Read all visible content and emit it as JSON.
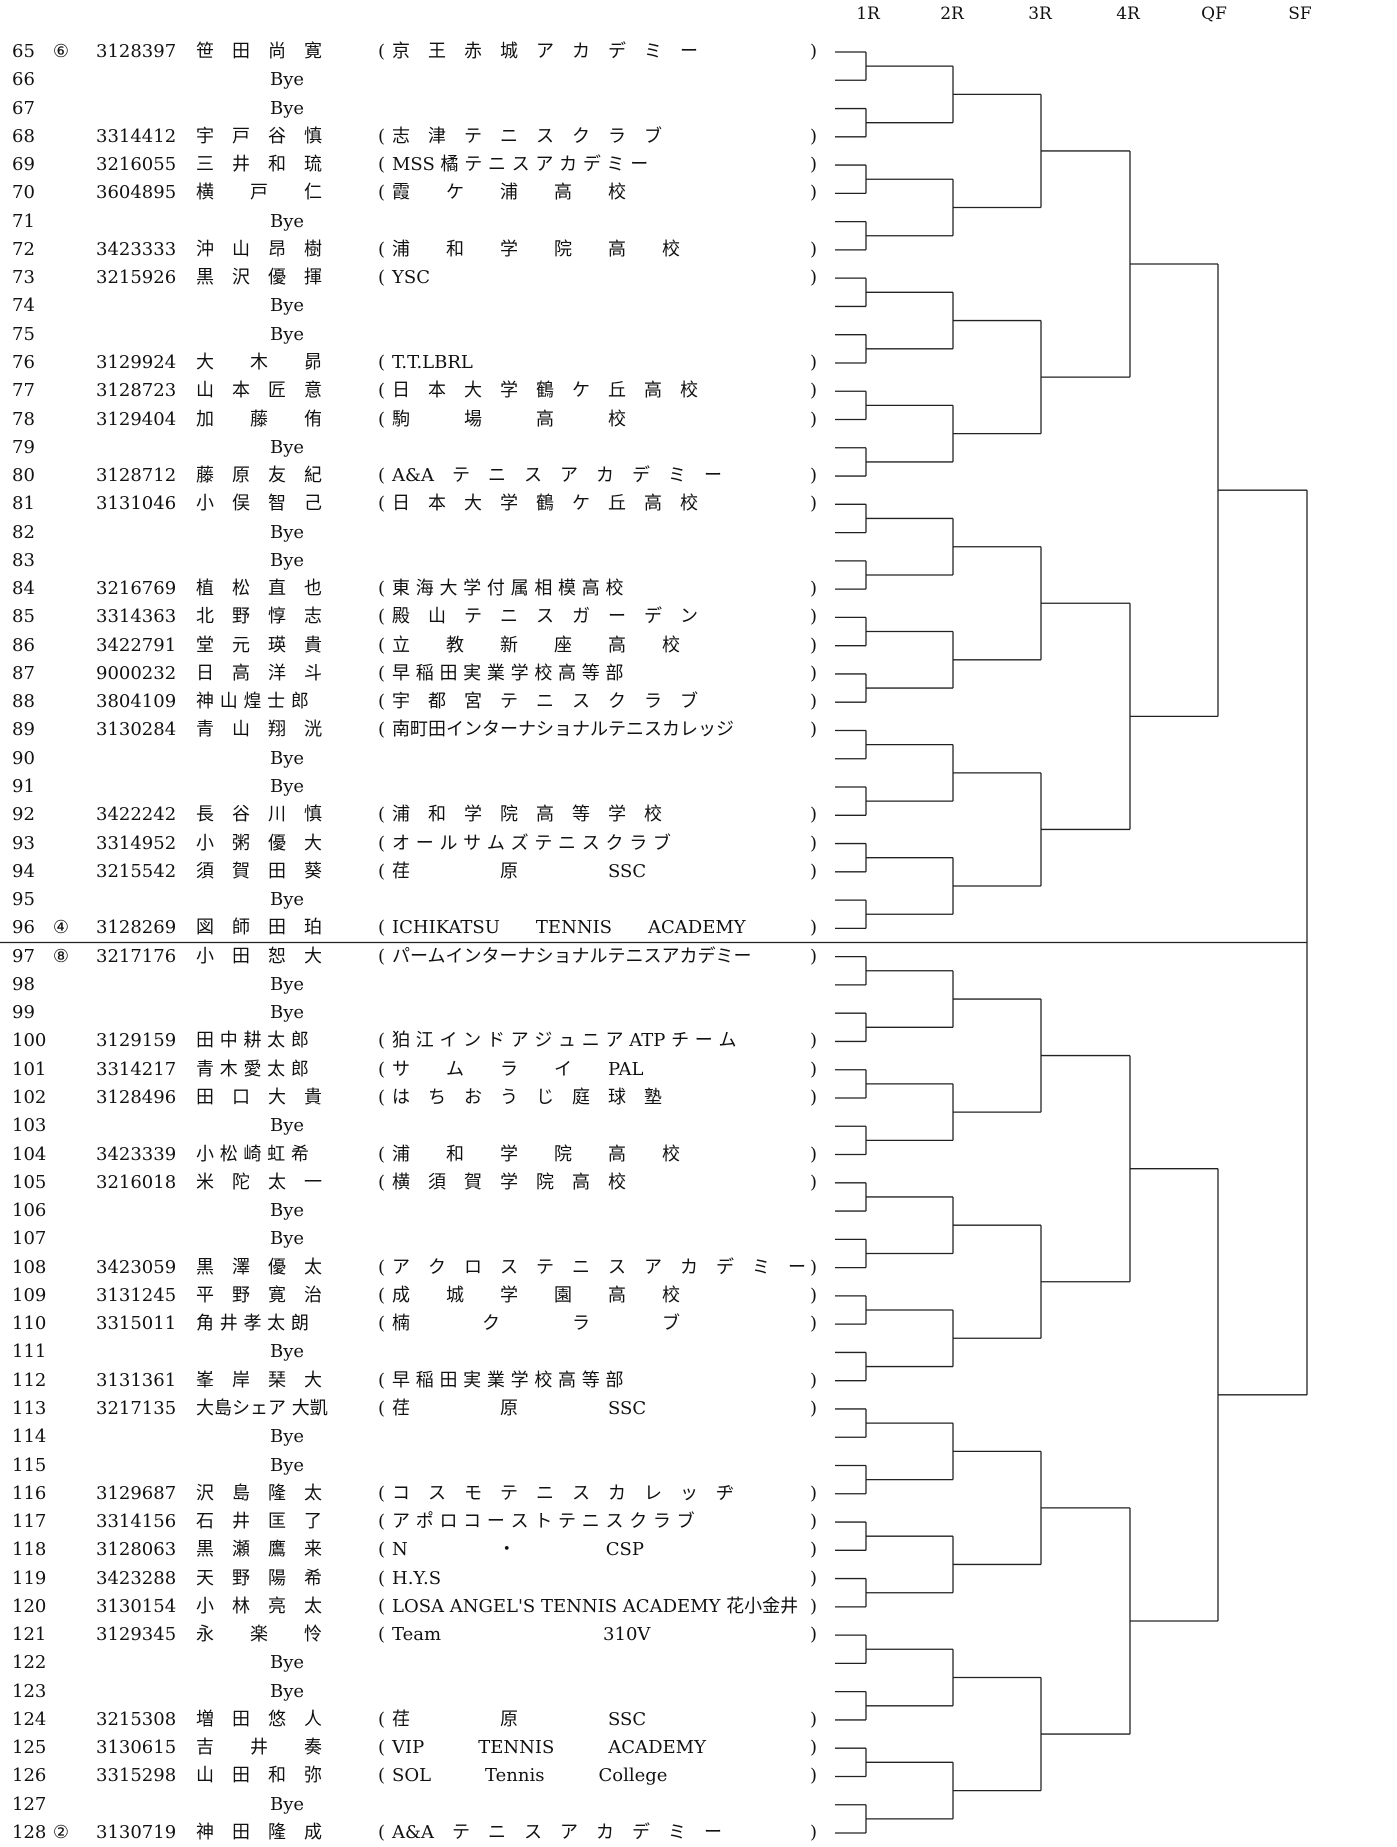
{
  "rounds": [
    "1R",
    "2R",
    "3R",
    "4R",
    "QF",
    "SF"
  ],
  "entries": [
    {
      "no": "65",
      "seed": "⑥",
      "id": "3128397",
      "name": "笹　田　尚　寛",
      "club": "京　王　赤　城　ア　カ　デ　ミ　ー"
    },
    {
      "no": "66",
      "seed": "",
      "id": "",
      "name": "",
      "club": "",
      "bye": "Bye"
    },
    {
      "no": "67",
      "seed": "",
      "id": "",
      "name": "",
      "club": "",
      "bye": "Bye"
    },
    {
      "no": "68",
      "seed": "",
      "id": "3314412",
      "name": "宇　戸　谷　慎",
      "club": "志　津　テ　ニ　ス　ク　ラ　ブ"
    },
    {
      "no": "69",
      "seed": "",
      "id": "3216055",
      "name": "三　井　和　琉",
      "club": "MSS 橘 テ ニ ス ア カ デ ミ ー"
    },
    {
      "no": "70",
      "seed": "",
      "id": "3604895",
      "name": "横　　戸　　仁",
      "club": "霞　　ケ　　浦　　高　　校"
    },
    {
      "no": "71",
      "seed": "",
      "id": "",
      "name": "",
      "club": "",
      "bye": "Bye"
    },
    {
      "no": "72",
      "seed": "",
      "id": "3423333",
      "name": "沖　山　昂　樹",
      "club": "浦　　和　　学　　院　　高　　校"
    },
    {
      "no": "73",
      "seed": "",
      "id": "3215926",
      "name": "黒　沢　優　揮",
      "club": "YSC"
    },
    {
      "no": "74",
      "seed": "",
      "id": "",
      "name": "",
      "club": "",
      "bye": "Bye"
    },
    {
      "no": "75",
      "seed": "",
      "id": "",
      "name": "",
      "club": "",
      "bye": "Bye"
    },
    {
      "no": "76",
      "seed": "",
      "id": "3129924",
      "name": "大　　木　　昴",
      "club": "T.T.LBRL"
    },
    {
      "no": "77",
      "seed": "",
      "id": "3128723",
      "name": "山　本　匠　意",
      "club": "日　本　大　学　鶴　ケ　丘　高　校"
    },
    {
      "no": "78",
      "seed": "",
      "id": "3129404",
      "name": "加　　藤　　侑",
      "club": "駒　　　場　　　高　　　校"
    },
    {
      "no": "79",
      "seed": "",
      "id": "",
      "name": "",
      "club": "",
      "bye": "Bye"
    },
    {
      "no": "80",
      "seed": "",
      "id": "3128712",
      "name": "藤　原　友　紀",
      "club": "A&A　テ　ニ　ス　ア　カ　デ　ミ　ー"
    },
    {
      "no": "81",
      "seed": "",
      "id": "3131046",
      "name": "小　俣　智　己",
      "club": "日　本　大　学　鶴　ケ　丘　高　校"
    },
    {
      "no": "82",
      "seed": "",
      "id": "",
      "name": "",
      "club": "",
      "bye": "Bye"
    },
    {
      "no": "83",
      "seed": "",
      "id": "",
      "name": "",
      "club": "",
      "bye": "Bye"
    },
    {
      "no": "84",
      "seed": "",
      "id": "3216769",
      "name": "植　松　直　也",
      "club": "東 海 大 学 付 属 相 模 高 校"
    },
    {
      "no": "85",
      "seed": "",
      "id": "3314363",
      "name": "北　野　惇　志",
      "club": "殿　山　テ　ニ　ス　ガ　ー　デ　ン"
    },
    {
      "no": "86",
      "seed": "",
      "id": "3422791",
      "name": "堂　元　瑛　貴",
      "club": "立　　教　　新　　座　　高　　校"
    },
    {
      "no": "87",
      "seed": "",
      "id": "9000232",
      "name": "日　高　洋　斗",
      "club": "早 稲 田 実 業 学 校 高 等 部"
    },
    {
      "no": "88",
      "seed": "",
      "id": "3804109",
      "name": "神 山 煌 士 郎",
      "club": "宇　都　宮　テ　ニ　ス　ク　ラ　ブ"
    },
    {
      "no": "89",
      "seed": "",
      "id": "3130284",
      "name": "青　山　翔　洸",
      "club": "南町田インターナショナルテニスカレッジ"
    },
    {
      "no": "90",
      "seed": "",
      "id": "",
      "name": "",
      "club": "",
      "bye": "Bye"
    },
    {
      "no": "91",
      "seed": "",
      "id": "",
      "name": "",
      "club": "",
      "bye": "Bye"
    },
    {
      "no": "92",
      "seed": "",
      "id": "3422242",
      "name": "長　谷　川　慎",
      "club": "浦　和　学　院　高　等　学　校"
    },
    {
      "no": "93",
      "seed": "",
      "id": "3314952",
      "name": "小　粥　優　大",
      "club": "オ ー ル サ ム ズ テ ニ ス ク ラ ブ"
    },
    {
      "no": "94",
      "seed": "",
      "id": "3215542",
      "name": "須　賀　田　葵",
      "club": "荏　　　　　原　　　　　SSC"
    },
    {
      "no": "95",
      "seed": "",
      "id": "",
      "name": "",
      "club": "",
      "bye": "Bye"
    },
    {
      "no": "96",
      "seed": "④",
      "id": "3128269",
      "name": "図　師　田　珀",
      "club": "ICHIKATSU　　TENNIS　　ACADEMY"
    },
    {
      "no": "97",
      "seed": "⑧",
      "id": "3217176",
      "name": "小　田　恕　大",
      "club": "パームインターナショナルテニスアカデミー"
    },
    {
      "no": "98",
      "seed": "",
      "id": "",
      "name": "",
      "club": "",
      "bye": "Bye"
    },
    {
      "no": "99",
      "seed": "",
      "id": "",
      "name": "",
      "club": "",
      "bye": "Bye"
    },
    {
      "no": "100",
      "seed": "",
      "id": "3129159",
      "name": "田 中 耕 太 郎",
      "club": "狛 江 イ ン ド ア ジ ュ ニ ア ATP チ ー ム"
    },
    {
      "no": "101",
      "seed": "",
      "id": "3314217",
      "name": "青 木 愛 太 郎",
      "club": "サ　　ム　　ラ　　イ　　PAL"
    },
    {
      "no": "102",
      "seed": "",
      "id": "3128496",
      "name": "田　口　大　貴",
      "club": "は　ち　お　う　じ　庭　球　塾"
    },
    {
      "no": "103",
      "seed": "",
      "id": "",
      "name": "",
      "club": "",
      "bye": "Bye"
    },
    {
      "no": "104",
      "seed": "",
      "id": "3423339",
      "name": "小 松 崎 虹 希",
      "club": "浦　　和　　学　　院　　高　　校"
    },
    {
      "no": "105",
      "seed": "",
      "id": "3216018",
      "name": "米　陀　太　一",
      "club": "横　須　賀　学　院　高　校"
    },
    {
      "no": "106",
      "seed": "",
      "id": "",
      "name": "",
      "club": "",
      "bye": "Bye"
    },
    {
      "no": "107",
      "seed": "",
      "id": "",
      "name": "",
      "club": "",
      "bye": "Bye"
    },
    {
      "no": "108",
      "seed": "",
      "id": "3423059",
      "name": "黒　澤　優　太",
      "club": "ア　ク　ロ　ス　テ　ニ　ス　ア　カ　デ　ミ　ー"
    },
    {
      "no": "109",
      "seed": "",
      "id": "3131245",
      "name": "平　野　寛　治",
      "club": "成　　城　　学　　園　　高　　校"
    },
    {
      "no": "110",
      "seed": "",
      "id": "3315011",
      "name": "角 井 孝 太 朗",
      "club": "楠　　　　ク　　　　ラ　　　　ブ"
    },
    {
      "no": "111",
      "seed": "",
      "id": "",
      "name": "",
      "club": "",
      "bye": "Bye"
    },
    {
      "no": "112",
      "seed": "",
      "id": "3131361",
      "name": "峯　岸　琹　大",
      "club": "早 稲 田 実 業 学 校 高 等 部"
    },
    {
      "no": "113",
      "seed": "",
      "id": "3217135",
      "name": "大島シェア 大凱",
      "club": "荏　　　　　原　　　　　SSC"
    },
    {
      "no": "114",
      "seed": "",
      "id": "",
      "name": "",
      "club": "",
      "bye": "Bye"
    },
    {
      "no": "115",
      "seed": "",
      "id": "",
      "name": "",
      "club": "",
      "bye": "Bye"
    },
    {
      "no": "116",
      "seed": "",
      "id": "3129687",
      "name": "沢　島　隆　太",
      "club": "コ　ス　モ　テ　ニ　ス　カ　レ　ッ　ヂ"
    },
    {
      "no": "117",
      "seed": "",
      "id": "3314156",
      "name": "石　井　匡　了",
      "club": "ア ポ ロ コ ー ス ト テ ニ ス ク ラ ブ"
    },
    {
      "no": "118",
      "seed": "",
      "id": "3128063",
      "name": "黒　瀬　鷹　来",
      "club": "N　　　　　・　　　　　CSP"
    },
    {
      "no": "119",
      "seed": "",
      "id": "3423288",
      "name": "天　野　陽　希",
      "club": "H.Y.S"
    },
    {
      "no": "120",
      "seed": "",
      "id": "3130154",
      "name": "小　林　亮　太",
      "club": "LOSA ANGEL'S TENNIS ACADEMY 花小金井"
    },
    {
      "no": "121",
      "seed": "",
      "id": "3129345",
      "name": "永　　楽　　怜",
      "club": "Team　　　　　　　　　310V"
    },
    {
      "no": "122",
      "seed": "",
      "id": "",
      "name": "",
      "club": "",
      "bye": "Bye"
    },
    {
      "no": "123",
      "seed": "",
      "id": "",
      "name": "",
      "club": "",
      "bye": "Bye"
    },
    {
      "no": "124",
      "seed": "",
      "id": "3215308",
      "name": "増　田　悠　人",
      "club": "荏　　　　　原　　　　　SSC"
    },
    {
      "no": "125",
      "seed": "",
      "id": "3130615",
      "name": "吉　　井　　奏",
      "club": "VIP　　　TENNIS　　　ACADEMY"
    },
    {
      "no": "126",
      "seed": "",
      "id": "3315298",
      "name": "山　田　和　弥",
      "club": "SOL　　　Tennis　　　College"
    },
    {
      "no": "127",
      "seed": "",
      "id": "",
      "name": "",
      "club": "",
      "bye": "Bye"
    },
    {
      "no": "128",
      "seed": "②",
      "id": "3130719",
      "name": "神　田　隆　成",
      "club": "A&A　テ　ニ　ス　ア　カ　デ　ミ　ー"
    }
  ]
}
